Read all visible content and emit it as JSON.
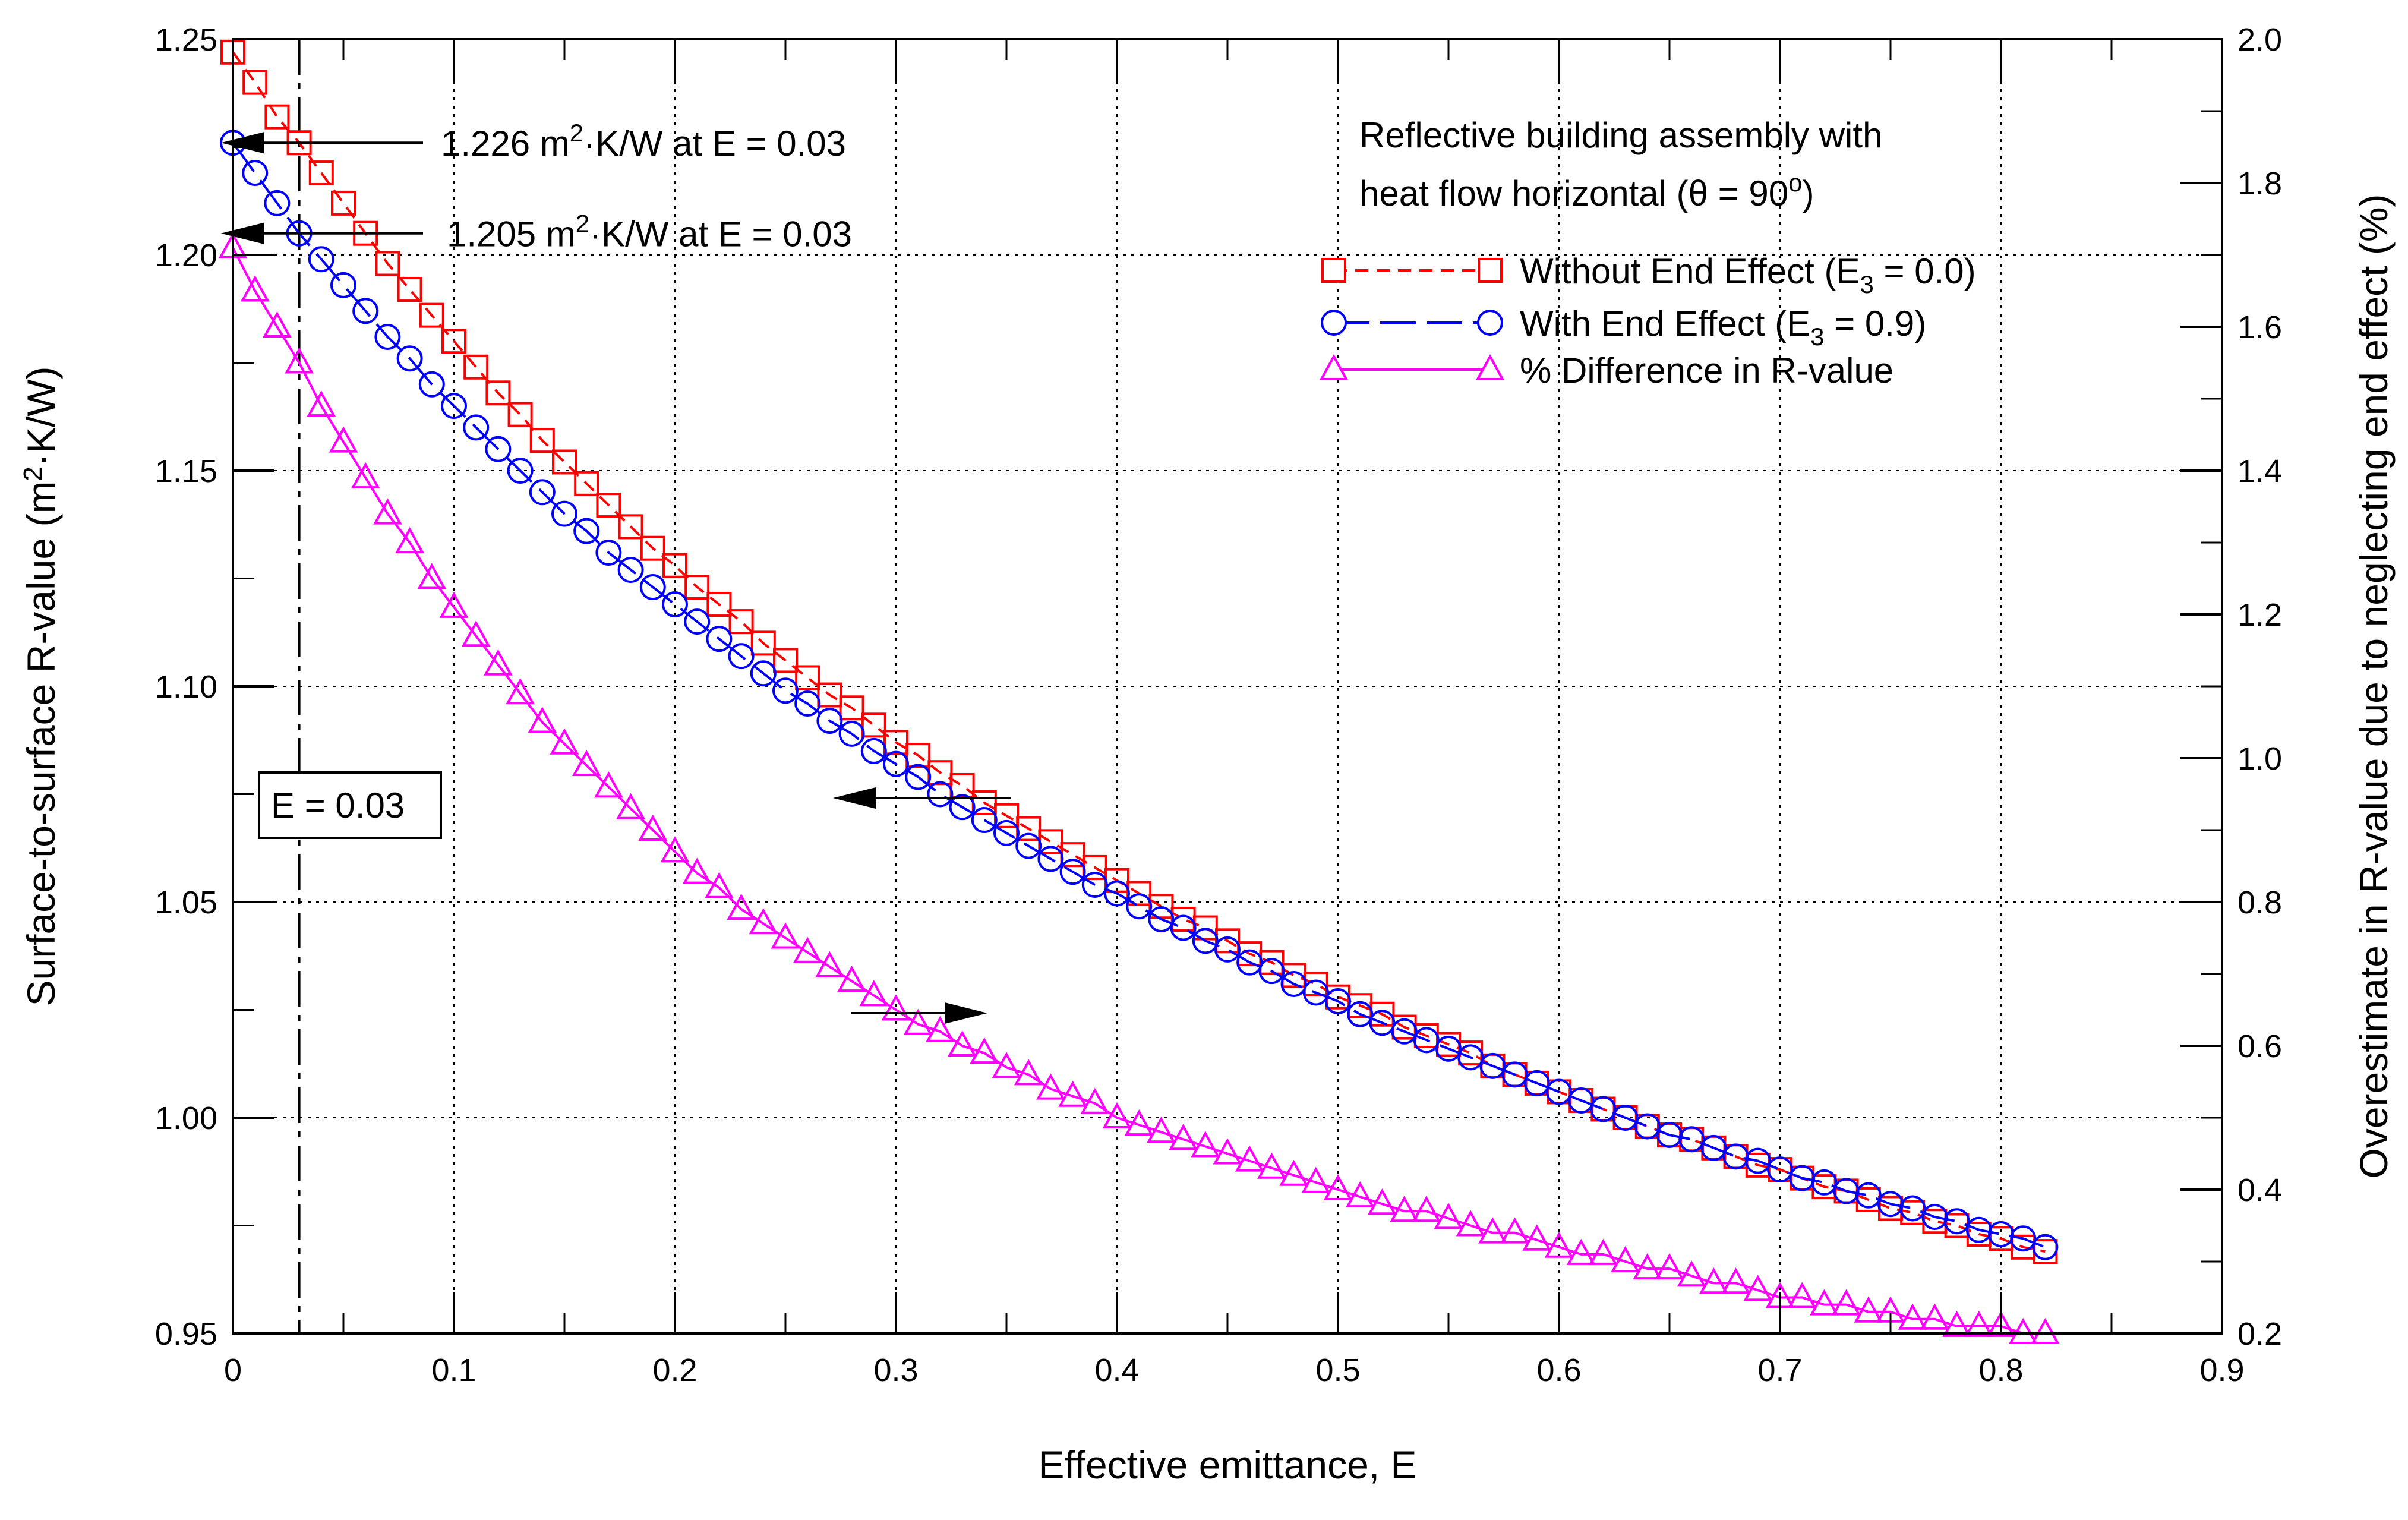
{
  "chart_data": {
    "type": "line",
    "title": "",
    "xlabel": "Effective emittance, E",
    "ylabel_left": "Surface-to-surface R-value (m²·K/W)",
    "ylabel_right": "Overestimate in R-value due to neglecting end effect (%)",
    "xlim": [
      0,
      0.9
    ],
    "ylim_left": [
      0.95,
      1.25
    ],
    "ylim_right": [
      0.2,
      2.0
    ],
    "x_ticks": [
      "0",
      "0.1",
      "0.2",
      "0.3",
      "0.4",
      "0.5",
      "0.6",
      "0.7",
      "0.8",
      "0.9"
    ],
    "y_left_ticks": [
      "0.95",
      "1.00",
      "1.05",
      "1.10",
      "1.15",
      "1.20",
      "1.25"
    ],
    "y_right_ticks": [
      "0.2",
      "0.4",
      "0.6",
      "0.8",
      "1.0",
      "1.2",
      "1.4",
      "1.6",
      "1.8",
      "2.0"
    ],
    "grid": true,
    "legend_position": "top-right",
    "x": [
      0.0,
      0.01,
      0.02,
      0.03,
      0.04,
      0.05,
      0.06,
      0.07,
      0.08,
      0.09,
      0.1,
      0.11,
      0.12,
      0.13,
      0.14,
      0.15,
      0.16,
      0.17,
      0.18,
      0.19,
      0.2,
      0.21,
      0.22,
      0.23,
      0.24,
      0.25,
      0.26,
      0.27,
      0.28,
      0.29,
      0.3,
      0.31,
      0.32,
      0.33,
      0.34,
      0.35,
      0.36,
      0.37,
      0.38,
      0.39,
      0.4,
      0.41,
      0.42,
      0.43,
      0.44,
      0.45,
      0.46,
      0.47,
      0.48,
      0.49,
      0.5,
      0.51,
      0.52,
      0.53,
      0.54,
      0.55,
      0.56,
      0.57,
      0.58,
      0.59,
      0.6,
      0.61,
      0.62,
      0.63,
      0.64,
      0.65,
      0.66,
      0.67,
      0.68,
      0.69,
      0.7,
      0.71,
      0.72,
      0.73,
      0.74,
      0.75,
      0.76,
      0.77,
      0.78,
      0.79,
      0.8,
      0.81,
      0.82
    ],
    "series": [
      {
        "name": "Without End Effect (E3 = 0.0)",
        "legend_label": "Without End Effect (E",
        "legend_sub": "3",
        "legend_tail": " = 0.0)",
        "axis": "left",
        "color": "#ff0000",
        "marker": "square",
        "dash": "dashed",
        "values": [
          1.247,
          1.24,
          1.232,
          1.226,
          1.219,
          1.212,
          1.205,
          1.198,
          1.192,
          1.186,
          1.18,
          1.174,
          1.168,
          1.163,
          1.157,
          1.152,
          1.147,
          1.142,
          1.137,
          1.132,
          1.128,
          1.123,
          1.119,
          1.115,
          1.11,
          1.106,
          1.102,
          1.098,
          1.095,
          1.091,
          1.087,
          1.084,
          1.08,
          1.077,
          1.073,
          1.07,
          1.067,
          1.064,
          1.061,
          1.058,
          1.055,
          1.052,
          1.049,
          1.046,
          1.044,
          1.041,
          1.038,
          1.036,
          1.033,
          1.031,
          1.028,
          1.026,
          1.024,
          1.021,
          1.019,
          1.017,
          1.015,
          1.012,
          1.01,
          1.008,
          1.006,
          1.004,
          1.002,
          1.0,
          0.998,
          0.996,
          0.995,
          0.993,
          0.991,
          0.989,
          0.988,
          0.986,
          0.984,
          0.983,
          0.981,
          0.979,
          0.978,
          0.976,
          0.975,
          0.973,
          0.972,
          0.97,
          0.969
        ]
      },
      {
        "name": "With End Effect (E3 = 0.9)",
        "legend_label": "With End Effect (E",
        "legend_sub": "3",
        "legend_tail": " = 0.9)",
        "axis": "left",
        "color": "#0000ff",
        "marker": "circle",
        "dash": "longdash",
        "values": [
          1.226,
          1.219,
          1.212,
          1.205,
          1.199,
          1.193,
          1.187,
          1.181,
          1.176,
          1.17,
          1.165,
          1.16,
          1.155,
          1.15,
          1.145,
          1.14,
          1.136,
          1.131,
          1.127,
          1.123,
          1.119,
          1.115,
          1.111,
          1.107,
          1.103,
          1.099,
          1.096,
          1.092,
          1.089,
          1.085,
          1.082,
          1.079,
          1.075,
          1.072,
          1.069,
          1.066,
          1.063,
          1.06,
          1.057,
          1.054,
          1.052,
          1.049,
          1.046,
          1.044,
          1.041,
          1.039,
          1.036,
          1.034,
          1.031,
          1.029,
          1.027,
          1.024,
          1.022,
          1.02,
          1.018,
          1.016,
          1.014,
          1.012,
          1.01,
          1.008,
          1.006,
          1.004,
          1.002,
          1.0,
          0.998,
          0.996,
          0.995,
          0.993,
          0.991,
          0.99,
          0.988,
          0.986,
          0.985,
          0.983,
          0.982,
          0.98,
          0.979,
          0.977,
          0.976,
          0.974,
          0.973,
          0.972,
          0.97
        ]
      },
      {
        "name": "% Difference in R-value",
        "legend_label": "% Difference in R-value",
        "legend_sub": "",
        "legend_tail": "",
        "axis": "right",
        "color": "#ff00ff",
        "marker": "triangle",
        "dash": "solid",
        "values": [
          1.71,
          1.65,
          1.6,
          1.55,
          1.49,
          1.44,
          1.39,
          1.34,
          1.3,
          1.25,
          1.21,
          1.17,
          1.13,
          1.09,
          1.05,
          1.02,
          0.99,
          0.96,
          0.93,
          0.9,
          0.87,
          0.84,
          0.82,
          0.79,
          0.77,
          0.75,
          0.73,
          0.71,
          0.69,
          0.67,
          0.65,
          0.63,
          0.62,
          0.6,
          0.59,
          0.57,
          0.56,
          0.54,
          0.53,
          0.52,
          0.5,
          0.49,
          0.48,
          0.47,
          0.46,
          0.45,
          0.44,
          0.43,
          0.42,
          0.41,
          0.4,
          0.39,
          0.38,
          0.37,
          0.37,
          0.36,
          0.35,
          0.34,
          0.34,
          0.33,
          0.32,
          0.31,
          0.31,
          0.3,
          0.29,
          0.29,
          0.28,
          0.27,
          0.27,
          0.26,
          0.25,
          0.25,
          0.24,
          0.24,
          0.23,
          0.23,
          0.22,
          0.22,
          0.21,
          0.21,
          0.21,
          0.2,
          0.2
        ]
      }
    ],
    "annotations": {
      "title_line1": "Reflective building assembly with",
      "title_line2": "heat flow horizontal (θ = 90",
      "title_line2_sup": "o",
      "title_line2_tail": ")",
      "label1_pre": "1.226 m",
      "label1_sup": "2",
      "label1_post": "·K/W at E  = 0.03",
      "label2_pre": "1.205 m",
      "label2_sup": "2",
      "label2_post": "·K/W at E  = 0.03",
      "e_box": "E = 0.03"
    },
    "reference_line": {
      "x": 0.03,
      "style": "dash-dot"
    },
    "marked_values": {
      "left_1": 1.226,
      "left_2": 1.205
    }
  }
}
